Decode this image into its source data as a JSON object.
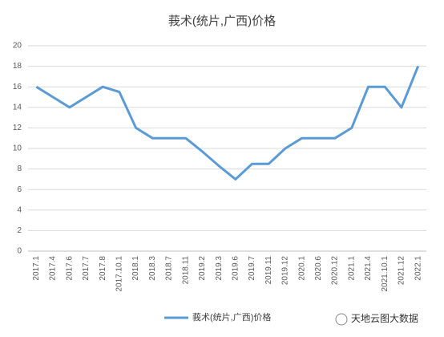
{
  "chart_data": {
    "type": "line",
    "title": "莪术(统片,广西)价格",
    "categories": [
      "2017.1",
      "2017.4",
      "2017.6",
      "2017.7",
      "2017.8",
      "2017.10.1",
      "2018.1",
      "2018.3",
      "2018.7",
      "2018.11",
      "2019.2",
      "2019.3",
      "2019.6",
      "2019.7",
      "2019.11",
      "2019.12",
      "2020.1",
      "2020.6",
      "2020.12",
      "2021.1",
      "2021.4",
      "2021.10.1",
      "2021.12",
      "2022.1"
    ],
    "series": [
      {
        "name": "莪术(统片,广西)价格",
        "color": "#5b9bd5",
        "values": [
          16,
          15,
          14,
          15,
          16,
          15.5,
          12,
          11,
          11,
          11,
          9.7,
          8.3,
          7,
          8.5,
          8.5,
          10,
          11,
          11,
          11,
          12,
          16,
          16,
          14,
          18
        ]
      }
    ],
    "ylim": [
      0,
      20
    ],
    "yticks": [
      0,
      2,
      4,
      6,
      8,
      10,
      12,
      14,
      16,
      18,
      20
    ],
    "grid": true,
    "legend": "bottom",
    "watermark": "天地云图大数据"
  }
}
